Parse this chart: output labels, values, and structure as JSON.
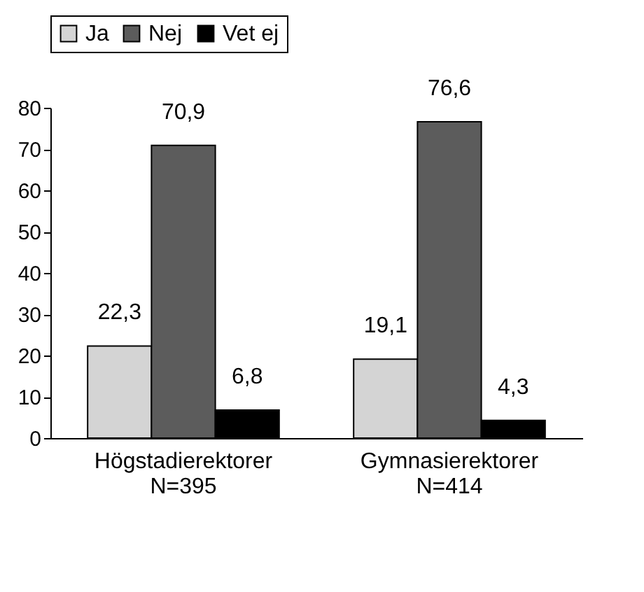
{
  "chart_data": {
    "type": "bar",
    "categories": [
      "Högstadierektorer\nN=395",
      "Gymnasierektorer\nN=414"
    ],
    "series": [
      {
        "name": "Ja",
        "color": "#d4d4d4",
        "values": [
          22.3,
          19.1
        ],
        "value_labels": [
          "22,3",
          "19,1"
        ]
      },
      {
        "name": "Nej",
        "color": "#5c5c5c",
        "values": [
          70.9,
          76.6
        ],
        "value_labels": [
          "70,9",
          "76,6"
        ]
      },
      {
        "name": "Vet ej",
        "color": "#000000",
        "values": [
          6.8,
          4.3
        ],
        "value_labels": [
          "6,8",
          "4,3"
        ]
      }
    ],
    "ylim": [
      0,
      80
    ],
    "yticks": [
      0,
      10,
      20,
      30,
      40,
      50,
      60,
      70,
      80
    ],
    "grid": false,
    "legend": "top"
  }
}
